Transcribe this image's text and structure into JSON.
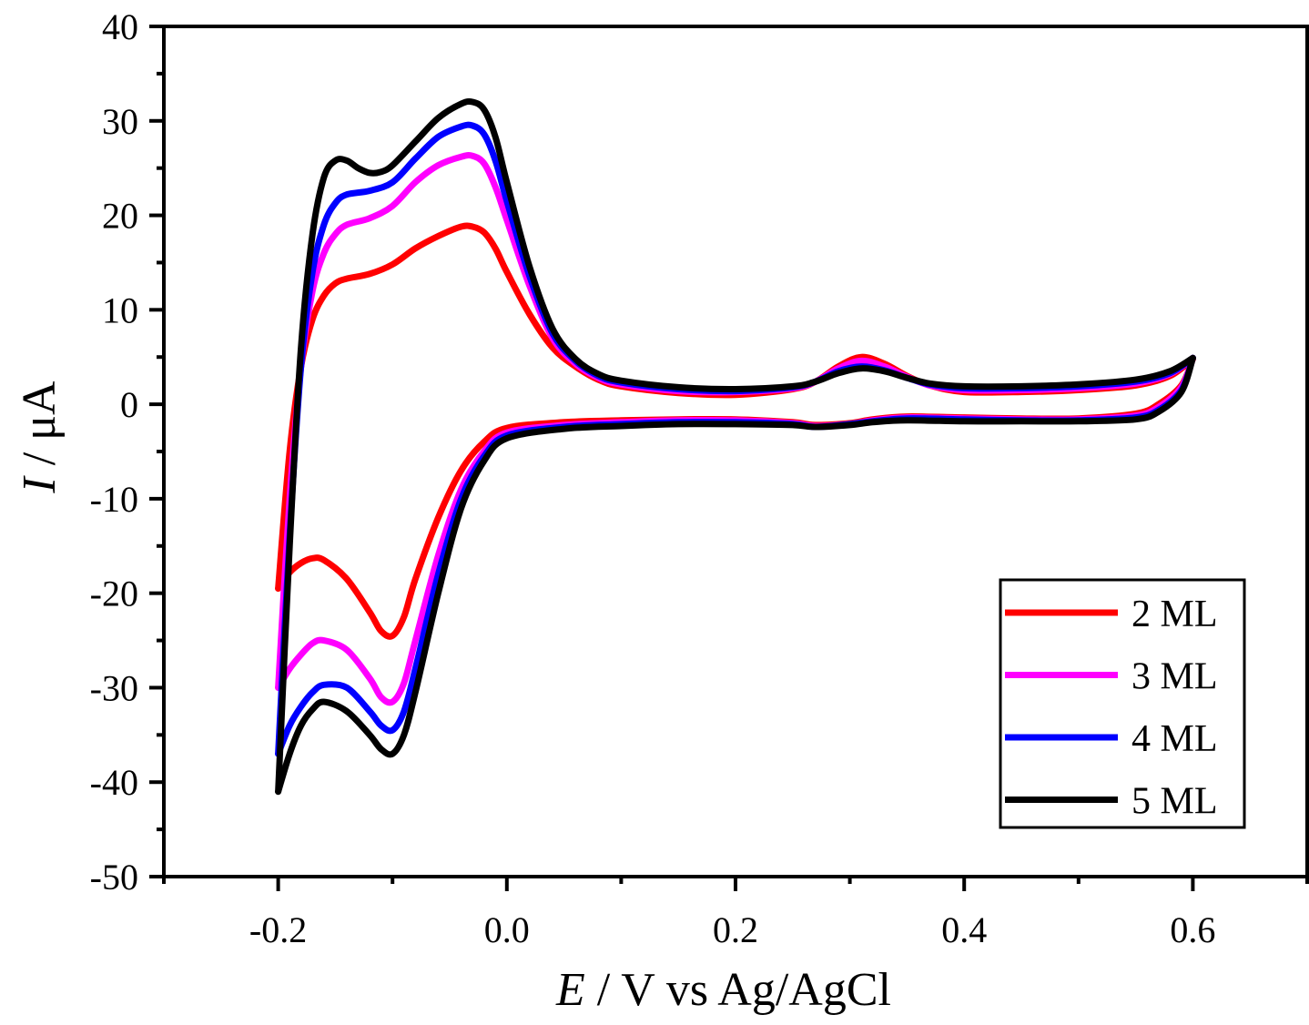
{
  "chart_data": {
    "type": "line",
    "title": "",
    "xlabel": "E / V vs Ag/AgCl",
    "xlabel_italic_part": "E",
    "xlabel_rest": " / V vs Ag/AgCl",
    "ylabel": "I / μA",
    "ylabel_italic_part": "I",
    "ylabel_rest": " / μA",
    "xlim": [
      -0.3,
      0.7
    ],
    "ylim": [
      -50,
      40
    ],
    "x_ticks": [
      -0.2,
      0.0,
      0.2,
      0.4,
      0.6
    ],
    "x_tick_labels": [
      "-0.2",
      "0.0",
      "0.2",
      "0.4",
      "0.6"
    ],
    "x_minor_ticks": [
      -0.3,
      -0.1,
      0.1,
      0.3,
      0.5,
      0.7
    ],
    "y_ticks": [
      40,
      30,
      20,
      10,
      0,
      -10,
      -20,
      -30,
      -40,
      -50
    ],
    "y_tick_labels": [
      "40",
      "30",
      "20",
      "10",
      "0",
      "-10",
      "-20",
      "-30",
      "-40",
      "-50"
    ],
    "y_minor_ticks": [
      35,
      25,
      15,
      5,
      -5,
      -15,
      -25,
      -35,
      -45
    ],
    "grid": false,
    "legend_position": "bottom-right",
    "series": [
      {
        "name": "2 ML",
        "color": "#ff0000",
        "anodic": {
          "x": [
            -0.2,
            -0.19,
            -0.18,
            -0.17,
            -0.16,
            -0.15,
            -0.14,
            -0.12,
            -0.1,
            -0.08,
            -0.06,
            -0.04,
            -0.03,
            -0.02,
            -0.01,
            0.0,
            0.02,
            0.04,
            0.06,
            0.08,
            0.1,
            0.15,
            0.2,
            0.25,
            0.27,
            0.29,
            0.31,
            0.33,
            0.35,
            0.37,
            0.4,
            0.45,
            0.5,
            0.55,
            0.58,
            0.6
          ],
          "y": [
            -19.5,
            -5,
            4,
            9,
            11.5,
            12.8,
            13.3,
            13.8,
            14.8,
            16.5,
            17.8,
            18.8,
            18.8,
            18.2,
            16.5,
            14,
            9.5,
            6,
            4,
            2.6,
            1.9,
            1.2,
            1.0,
            1.6,
            2.4,
            4.0,
            5.0,
            4.3,
            3.0,
            2.0,
            1.3,
            1.3,
            1.5,
            2.0,
            3.0,
            4.8
          ]
        },
        "cathodic": {
          "x": [
            0.6,
            0.59,
            0.57,
            0.55,
            0.5,
            0.45,
            0.4,
            0.35,
            0.32,
            0.3,
            0.27,
            0.25,
            0.2,
            0.15,
            0.1,
            0.05,
            0.0,
            -0.02,
            -0.04,
            -0.06,
            -0.08,
            -0.09,
            -0.1,
            -0.11,
            -0.12,
            -0.14,
            -0.16,
            -0.17,
            -0.18,
            -0.19,
            -0.2
          ],
          "y": [
            4.8,
            2.0,
            0.0,
            -1.0,
            -1.5,
            -1.5,
            -1.4,
            -1.3,
            -1.6,
            -2.0,
            -2.2,
            -1.9,
            -1.6,
            -1.6,
            -1.7,
            -1.9,
            -2.5,
            -4.0,
            -7.0,
            -12.0,
            -18.5,
            -22.5,
            -24.5,
            -24.0,
            -22.0,
            -18.5,
            -16.5,
            -16.3,
            -16.8,
            -17.8,
            -19.5
          ]
        }
      },
      {
        "name": "3 ML",
        "color": "#ff00ff",
        "anodic": {
          "x": [
            -0.2,
            -0.19,
            -0.18,
            -0.17,
            -0.16,
            -0.15,
            -0.14,
            -0.12,
            -0.1,
            -0.08,
            -0.06,
            -0.04,
            -0.03,
            -0.02,
            -0.01,
            0.0,
            0.02,
            0.04,
            0.06,
            0.08,
            0.1,
            0.15,
            0.2,
            0.25,
            0.27,
            0.29,
            0.31,
            0.33,
            0.35,
            0.37,
            0.4,
            0.45,
            0.5,
            0.55,
            0.58,
            0.6
          ],
          "y": [
            -30,
            -10,
            4,
            12,
            16,
            18,
            19,
            19.7,
            21,
            23.5,
            25.3,
            26.2,
            26.3,
            25.5,
            23,
            19.5,
            12.5,
            7,
            4.3,
            2.8,
            2.1,
            1.4,
            1.3,
            1.7,
            2.4,
            3.8,
            4.6,
            4.0,
            2.9,
            2.0,
            1.5,
            1.5,
            1.7,
            2.2,
            3.2,
            4.9
          ]
        },
        "cathodic": {
          "x": [
            0.6,
            0.59,
            0.57,
            0.55,
            0.5,
            0.45,
            0.4,
            0.35,
            0.32,
            0.3,
            0.27,
            0.25,
            0.2,
            0.15,
            0.1,
            0.05,
            0.0,
            -0.02,
            -0.04,
            -0.06,
            -0.08,
            -0.09,
            -0.1,
            -0.11,
            -0.12,
            -0.14,
            -0.16,
            -0.17,
            -0.18,
            -0.19,
            -0.2
          ],
          "y": [
            4.9,
            1.8,
            -0.3,
            -1.2,
            -1.6,
            -1.6,
            -1.5,
            -1.4,
            -1.7,
            -2.1,
            -2.3,
            -2.0,
            -1.7,
            -1.7,
            -1.9,
            -2.2,
            -3.0,
            -5.0,
            -9.0,
            -16.0,
            -25.0,
            -29.5,
            -31.5,
            -31.0,
            -29.0,
            -26.0,
            -25.0,
            -25.3,
            -26.5,
            -28.0,
            -30.0
          ]
        }
      },
      {
        "name": "4 ML",
        "color": "#0000ff",
        "anodic": {
          "x": [
            -0.2,
            -0.19,
            -0.18,
            -0.17,
            -0.16,
            -0.15,
            -0.14,
            -0.12,
            -0.1,
            -0.08,
            -0.06,
            -0.04,
            -0.03,
            -0.02,
            -0.01,
            0.0,
            0.02,
            0.04,
            0.06,
            0.08,
            0.1,
            0.15,
            0.2,
            0.25,
            0.27,
            0.29,
            0.31,
            0.33,
            0.35,
            0.37,
            0.4,
            0.45,
            0.5,
            0.55,
            0.58,
            0.6
          ],
          "y": [
            -37,
            -14,
            4,
            14,
            19,
            21.3,
            22.2,
            22.6,
            23.5,
            26,
            28.3,
            29.4,
            29.5,
            28.6,
            25.8,
            21.5,
            13.5,
            7.5,
            4.6,
            3.0,
            2.3,
            1.6,
            1.4,
            1.8,
            2.4,
            3.5,
            4.0,
            3.6,
            2.8,
            2.1,
            1.7,
            1.7,
            1.9,
            2.4,
            3.3,
            4.9
          ]
        },
        "cathodic": {
          "x": [
            0.6,
            0.59,
            0.57,
            0.55,
            0.5,
            0.45,
            0.4,
            0.35,
            0.32,
            0.3,
            0.27,
            0.25,
            0.2,
            0.15,
            0.1,
            0.05,
            0.0,
            -0.02,
            -0.04,
            -0.06,
            -0.08,
            -0.09,
            -0.1,
            -0.11,
            -0.12,
            -0.14,
            -0.16,
            -0.17,
            -0.18,
            -0.19,
            -0.2
          ],
          "y": [
            4.9,
            1.5,
            -0.6,
            -1.4,
            -1.7,
            -1.7,
            -1.6,
            -1.5,
            -1.8,
            -2.1,
            -2.4,
            -2.1,
            -1.9,
            -1.9,
            -2.1,
            -2.4,
            -3.3,
            -5.5,
            -10.0,
            -18.0,
            -28.0,
            -32.5,
            -34.5,
            -34.0,
            -32.5,
            -30.0,
            -29.7,
            -30.5,
            -32.0,
            -34.0,
            -37.0
          ]
        }
      },
      {
        "name": "5 ML",
        "color": "#000000",
        "anodic": {
          "x": [
            -0.2,
            -0.19,
            -0.18,
            -0.17,
            -0.16,
            -0.15,
            -0.14,
            -0.13,
            -0.12,
            -0.11,
            -0.1,
            -0.08,
            -0.06,
            -0.04,
            -0.03,
            -0.02,
            -0.01,
            0.0,
            0.02,
            0.04,
            0.06,
            0.08,
            0.1,
            0.15,
            0.2,
            0.25,
            0.27,
            0.29,
            0.31,
            0.33,
            0.35,
            0.37,
            0.4,
            0.45,
            0.5,
            0.55,
            0.58,
            0.6
          ],
          "y": [
            -41,
            -15,
            6,
            18,
            24,
            25.8,
            25.8,
            25.0,
            24.5,
            24.6,
            25.3,
            27.8,
            30.3,
            31.8,
            32.0,
            31.2,
            28.3,
            23.5,
            14.5,
            8.0,
            4.8,
            3.2,
            2.5,
            1.8,
            1.6,
            1.9,
            2.4,
            3.3,
            3.8,
            3.5,
            2.8,
            2.2,
            1.9,
            1.9,
            2.1,
            2.6,
            3.5,
            4.9
          ]
        },
        "cathodic": {
          "x": [
            0.6,
            0.59,
            0.57,
            0.55,
            0.5,
            0.45,
            0.4,
            0.35,
            0.32,
            0.3,
            0.27,
            0.25,
            0.2,
            0.15,
            0.1,
            0.05,
            0.0,
            -0.02,
            -0.04,
            -0.06,
            -0.08,
            -0.09,
            -0.1,
            -0.11,
            -0.12,
            -0.14,
            -0.16,
            -0.17,
            -0.18,
            -0.19,
            -0.2
          ],
          "y": [
            4.9,
            1.3,
            -0.8,
            -1.6,
            -1.8,
            -1.8,
            -1.8,
            -1.7,
            -1.9,
            -2.2,
            -2.4,
            -2.2,
            -2.1,
            -2.1,
            -2.3,
            -2.6,
            -3.6,
            -6.0,
            -11.0,
            -20.0,
            -30.5,
            -35.0,
            -37.0,
            -36.5,
            -35.0,
            -32.5,
            -31.5,
            -32.3,
            -34.0,
            -37.0,
            -41.0
          ]
        }
      }
    ]
  }
}
